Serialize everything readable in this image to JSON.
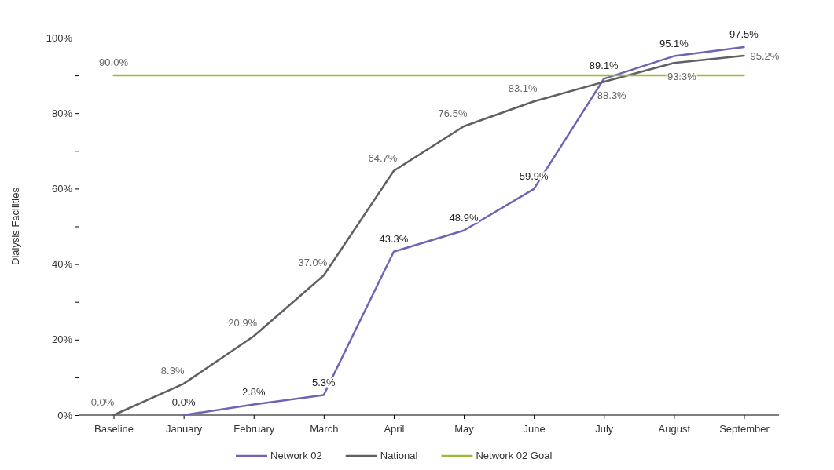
{
  "chart_data": {
    "type": "line",
    "ylabel": "Dialysis Facilities",
    "categories": [
      "Baseline",
      "January",
      "February",
      "March",
      "April",
      "May",
      "June",
      "July",
      "August",
      "September"
    ],
    "series": [
      {
        "name": "Network 02",
        "color": "#6e64b4",
        "values": [
          null,
          0.0,
          2.8,
          5.3,
          43.3,
          48.9,
          59.9,
          89.1,
          95.1,
          97.5
        ],
        "value_labels": [
          null,
          "0.0%",
          "2.8%",
          "5.3%",
          "43.3%",
          "48.9%",
          "59.9%",
          "89.1%",
          "95.1%",
          "97.5%"
        ]
      },
      {
        "name": "National",
        "color": "#5f5f66",
        "values": [
          0.0,
          8.3,
          20.9,
          37.0,
          64.7,
          76.5,
          83.1,
          88.3,
          93.3,
          95.2
        ],
        "value_labels": [
          "0.0%",
          "8.3%",
          "20.9%",
          "37.0%",
          "64.7%",
          "76.5%",
          "83.1%",
          "88.3%",
          "93.3%",
          "95.2%"
        ]
      },
      {
        "name": "Network 02 Goal",
        "color": "#9bbb3c",
        "values": [
          90.0,
          90.0,
          90.0,
          90.0,
          90.0,
          90.0,
          90.0,
          90.0,
          90.0,
          90.0
        ],
        "value_labels": [
          "90.0%",
          null,
          null,
          null,
          null,
          null,
          null,
          null,
          null,
          null
        ]
      }
    ],
    "ylim": [
      0,
      100
    ],
    "yticks": [
      {
        "value": 0,
        "label": "0%"
      },
      {
        "value": 10,
        "label": null
      },
      {
        "value": 20,
        "label": "20%"
      },
      {
        "value": 30,
        "label": null
      },
      {
        "value": 40,
        "label": "40%"
      },
      {
        "value": 50,
        "label": null
      },
      {
        "value": 60,
        "label": "60%"
      },
      {
        "value": 70,
        "label": null
      },
      {
        "value": 80,
        "label": "80%"
      },
      {
        "value": 90,
        "label": null
      },
      {
        "value": 100,
        "label": "100%"
      }
    ],
    "grid": false,
    "legend": "bottom",
    "marker": "none",
    "line_style": "solid"
  }
}
